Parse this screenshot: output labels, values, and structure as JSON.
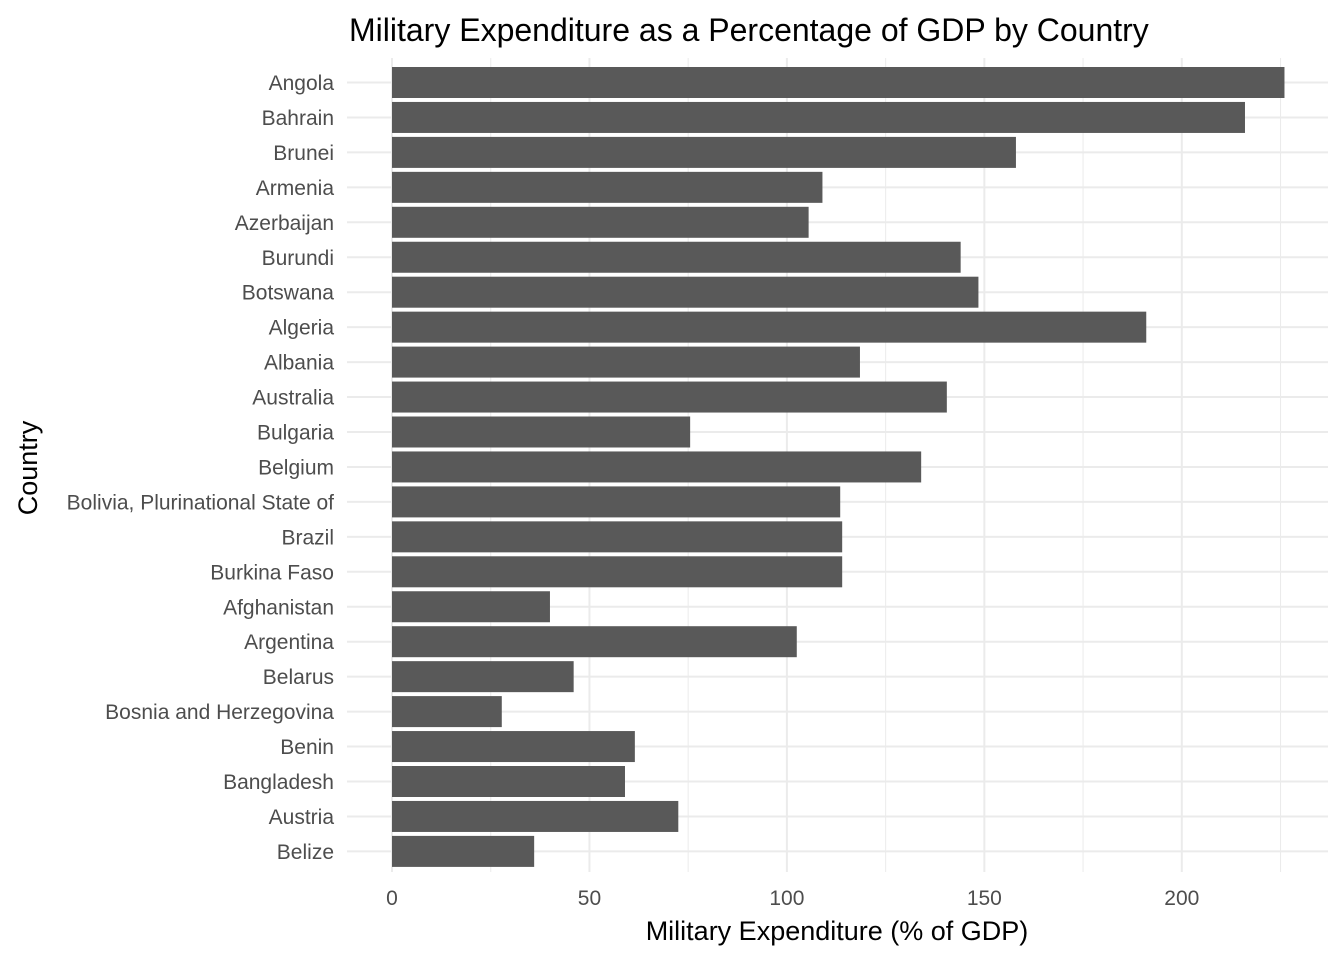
{
  "chart_data": {
    "type": "bar",
    "orientation": "horizontal",
    "title": "Military Expenditure as a Percentage of GDP by Country",
    "xlabel": "Military Expenditure (% of GDP)",
    "ylabel": "Country",
    "xlim": [
      0,
      226
    ],
    "xticks": [
      0,
      50,
      100,
      150,
      200
    ],
    "xtick_labels": [
      "0",
      "50",
      "100",
      "150",
      "200"
    ],
    "grid": true,
    "bar_color": "#595959",
    "categories": [
      "Angola",
      "Bahrain",
      "Brunei",
      "Armenia",
      "Azerbaijan",
      "Burundi",
      "Botswana",
      "Algeria",
      "Albania",
      "Australia",
      "Bulgaria",
      "Belgium",
      "Bolivia, Plurinational State of",
      "Brazil",
      "Burkina Faso",
      "Afghanistan",
      "Argentina",
      "Belarus",
      "Bosnia and Herzegovina",
      "Benin",
      "Bangladesh",
      "Austria",
      "Belize"
    ],
    "values": [
      226,
      216,
      158,
      109,
      105.5,
      144,
      148.5,
      191,
      118.5,
      140.5,
      75.5,
      134,
      113.5,
      114,
      114,
      40,
      102.5,
      46,
      27.8,
      61.5,
      59,
      72.5,
      36
    ]
  }
}
